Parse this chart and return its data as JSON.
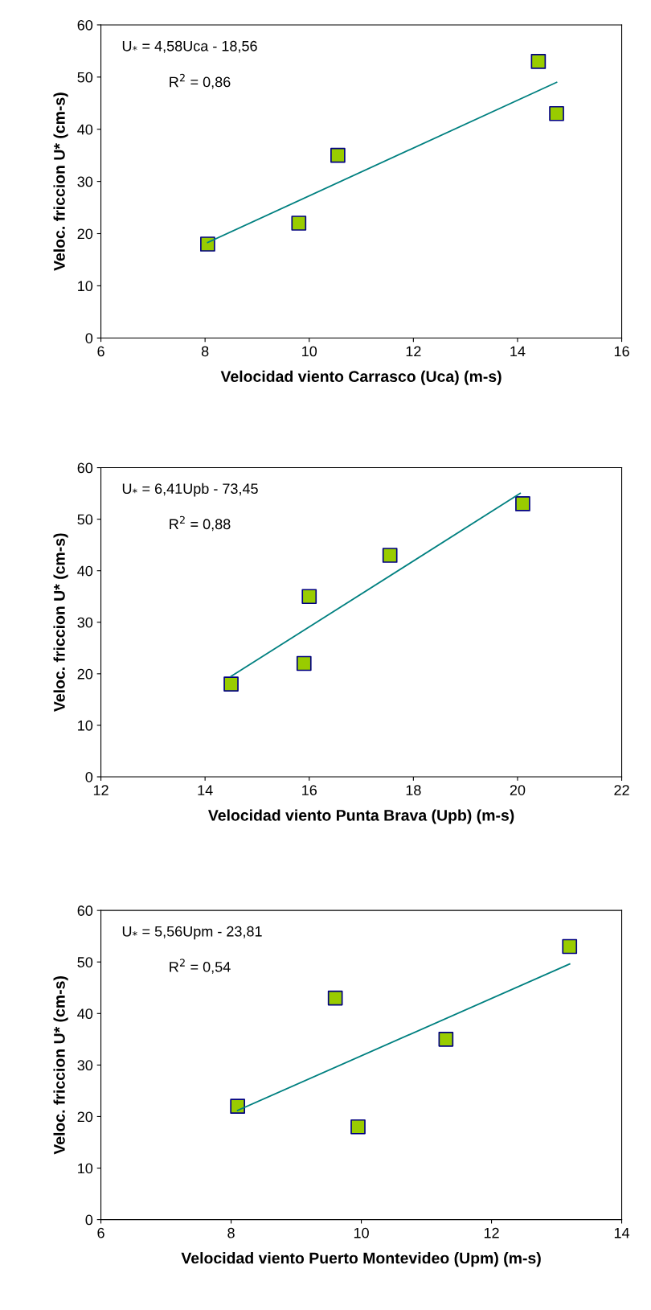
{
  "chart_data": [
    {
      "type": "scatter",
      "xlabel": "Velocidad viento Carrasco (Uca) (m-s)",
      "ylabel": "Veloc. friccion U* (cm-s)",
      "xlim": [
        6,
        16
      ],
      "xticks": [
        6,
        8,
        10,
        12,
        14,
        16
      ],
      "ylim": [
        0,
        60
      ],
      "yticks": [
        0,
        10,
        20,
        30,
        40,
        50,
        60
      ],
      "grid": false,
      "annotations": [
        "U$_{*}$ = 4,58Uca - 18,56",
        "R$^{2}$ = 0,86"
      ],
      "series": [
        {
          "marker": "square",
          "color": "#99cc00",
          "x": [
            8.05,
            9.8,
            10.55,
            14.4,
            14.75
          ],
          "values": [
            18,
            22,
            35,
            53,
            43
          ]
        },
        {
          "type": "line",
          "marker": "none",
          "color": "#008080",
          "x": [
            8.05,
            14.75
          ],
          "values": [
            18.3,
            49
          ]
        }
      ]
    },
    {
      "type": "scatter",
      "xlabel": "Velocidad viento Punta Brava (Upb) (m-s)",
      "ylabel": "Veloc. friccion U* (cm-s)",
      "xlim": [
        12,
        22
      ],
      "xticks": [
        12,
        14,
        16,
        18,
        20,
        22
      ],
      "ylim": [
        0,
        60
      ],
      "yticks": [
        0,
        10,
        20,
        30,
        40,
        50,
        60
      ],
      "grid": false,
      "annotations": [
        "U$_{*}$ = 6,41Upb - 73,45",
        "R$^{2}$ = 0,88"
      ],
      "series": [
        {
          "marker": "square",
          "color": "#99cc00",
          "x": [
            14.5,
            15.9,
            16.0,
            17.55,
            20.1
          ],
          "values": [
            18,
            22,
            35,
            43,
            53
          ]
        },
        {
          "type": "line",
          "marker": "none",
          "color": "#008080",
          "x": [
            14.5,
            20.05
          ],
          "values": [
            19.5,
            55
          ]
        }
      ]
    },
    {
      "type": "scatter",
      "xlabel": "Velocidad viento Puerto Montevideo (Upm) (m-s)",
      "ylabel": "Veloc. friccion U* (cm-s)",
      "xlim": [
        6,
        14
      ],
      "xticks": [
        6,
        8,
        10,
        12,
        14
      ],
      "ylim": [
        0,
        60
      ],
      "yticks": [
        0,
        10,
        20,
        30,
        40,
        50,
        60
      ],
      "grid": false,
      "annotations": [
        "U$_{*}$ = 5,56Upm - 23,81",
        "R$^{2}$ = 0,54"
      ],
      "series": [
        {
          "marker": "square",
          "color": "#99cc00",
          "x": [
            8.1,
            9.6,
            9.95,
            11.3,
            13.2
          ],
          "values": [
            22,
            43,
            18,
            35,
            53
          ]
        },
        {
          "type": "line",
          "marker": "none",
          "color": "#008080",
          "x": [
            8.1,
            13.2
          ],
          "values": [
            21.2,
            49.6
          ]
        }
      ]
    }
  ]
}
